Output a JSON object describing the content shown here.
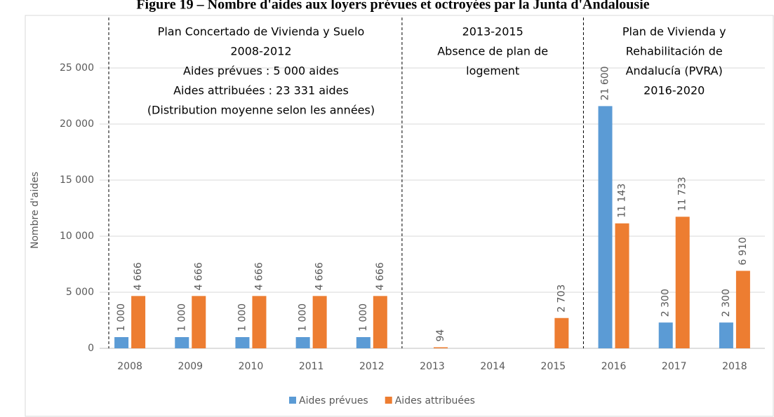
{
  "chart_data": {
    "type": "bar",
    "title": "Figure 19 – Nombre d'aides aux loyers prévues et octroyées par la Junta d'Andalousie",
    "y_label": "Nombre d'aides",
    "annotations": [
      [
        "Plan Concertado de Vivienda y Suelo",
        "2008-2012",
        "Aides prévues : 5 000 aides",
        "Aides attribuées : 23 331 aides",
        "(Distribution moyenne selon les années)"
      ],
      [
        "2013-2015",
        "Absence de plan de",
        "logement"
      ],
      [
        "Plan de Vivienda y",
        "Rehabilitación de",
        "Andalucía (PVRA)",
        "2016-2020"
      ]
    ],
    "categories": [
      "2008",
      "2009",
      "2010",
      "2011",
      "2012",
      "2013",
      "2014",
      "2015",
      "2016",
      "2017",
      "2018"
    ],
    "series": [
      {
        "name": "Aides prévues",
        "color": "#5b9bd5",
        "values": [
          1000,
          1000,
          1000,
          1000,
          1000,
          null,
          null,
          null,
          21600,
          2300,
          2300
        ],
        "value_labels": [
          "1 000",
          "1 000",
          "1 000",
          "1 000",
          "1 000",
          null,
          null,
          null,
          "21 600",
          "2 300",
          "2 300"
        ]
      },
      {
        "name": "Aides attribuées",
        "color": "#ed7d31",
        "values": [
          4666,
          4666,
          4666,
          4666,
          4666,
          94,
          null,
          2703,
          11143,
          11733,
          6910
        ],
        "value_labels": [
          "4 666",
          "4 666",
          "4 666",
          "4 666",
          "4 666",
          "94",
          null,
          "2 703",
          "11 143",
          "11 733",
          "6 910"
        ]
      }
    ],
    "ylim": [
      0,
      30000
    ],
    "yticks": [
      0,
      {
        "value": 5000,
        "label": "5 000"
      },
      {
        "value": 10000,
        "label": "10 000"
      },
      {
        "value": 15000,
        "label": "15 000"
      },
      {
        "value": 20000,
        "label": "20 000"
      },
      {
        "value": 25000,
        "label": "25 000"
      }
    ],
    "grid": true,
    "legend": "bottom"
  }
}
